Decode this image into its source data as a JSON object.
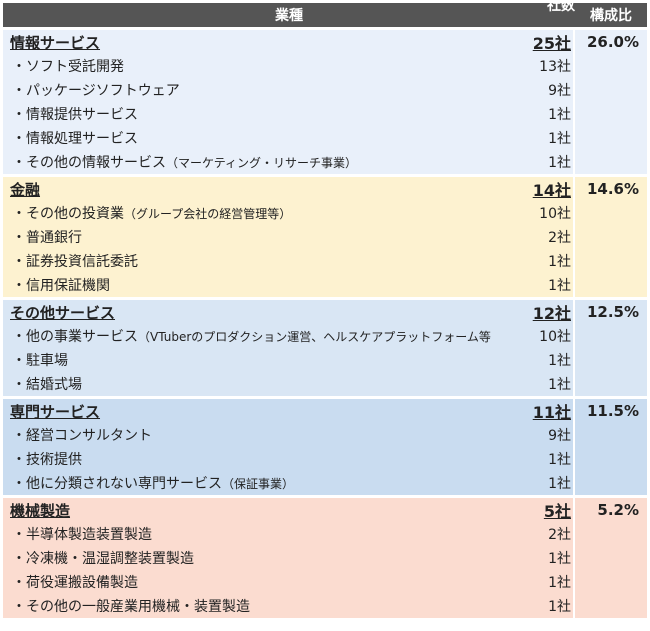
{
  "header": {
    "industry": "業種",
    "count": "社数",
    "ratio": "構成比"
  },
  "colors": {
    "it": "#e9f0fa",
    "finance": "#fdf2d0",
    "other": "#d9e6f4",
    "professional": "#c9dcf0",
    "machinery": "#fbdcd0"
  },
  "groups": [
    {
      "name": "情報サービス",
      "count": "25社",
      "ratio": "26.0%",
      "items": [
        {
          "name": "・ソフト受託開発",
          "count": "13社"
        },
        {
          "name": "・パッケージソフトウェア",
          "count": "9社"
        },
        {
          "name": "・情報提供サービス",
          "count": "1社"
        },
        {
          "name": "・情報処理サービス",
          "count": "1社"
        },
        {
          "name": "・その他の情報サービス",
          "note": "（マーケティング・リサーチ事業）",
          "count": "1社"
        }
      ]
    },
    {
      "name": "金融",
      "count": "14社",
      "ratio": "14.6%",
      "items": [
        {
          "name": "・その他の投資業",
          "note": "（グループ会社の経営管理等）",
          "count": "10社"
        },
        {
          "name": "・普通銀行",
          "count": "2社"
        },
        {
          "name": "・証券投資信託委託",
          "count": "1社"
        },
        {
          "name": "・信用保証機関",
          "count": "1社"
        }
      ]
    },
    {
      "name": "その他サービス",
      "count": "12社",
      "ratio": "12.5%",
      "items": [
        {
          "name": "・他の事業サービス",
          "note": "（VTuberのプロダクション運営、ヘルスケアプラットフォーム等）",
          "count": "10社"
        },
        {
          "name": "・駐車場",
          "count": "1社"
        },
        {
          "name": "・結婚式場",
          "count": "1社"
        }
      ]
    },
    {
      "name": "専門サービス",
      "count": "11社",
      "ratio": "11.5%",
      "items": [
        {
          "name": "・経営コンサルタント",
          "count": "9社"
        },
        {
          "name": "・技術提供",
          "count": "1社"
        },
        {
          "name": "・他に分類されない専門サービス",
          "note": "（保証事業）",
          "count": "1社"
        }
      ]
    },
    {
      "name": "機械製造",
      "count": "5社",
      "ratio": "5.2%",
      "items": [
        {
          "name": "・半導体製造装置製造",
          "count": "2社"
        },
        {
          "name": "・冷凍機・温湿調整装置製造",
          "count": "1社"
        },
        {
          "name": "・荷役運搬設備製造",
          "count": "1社"
        },
        {
          "name": "・その他の一般産業用機械・装置製造",
          "count": "1社"
        }
      ]
    }
  ]
}
